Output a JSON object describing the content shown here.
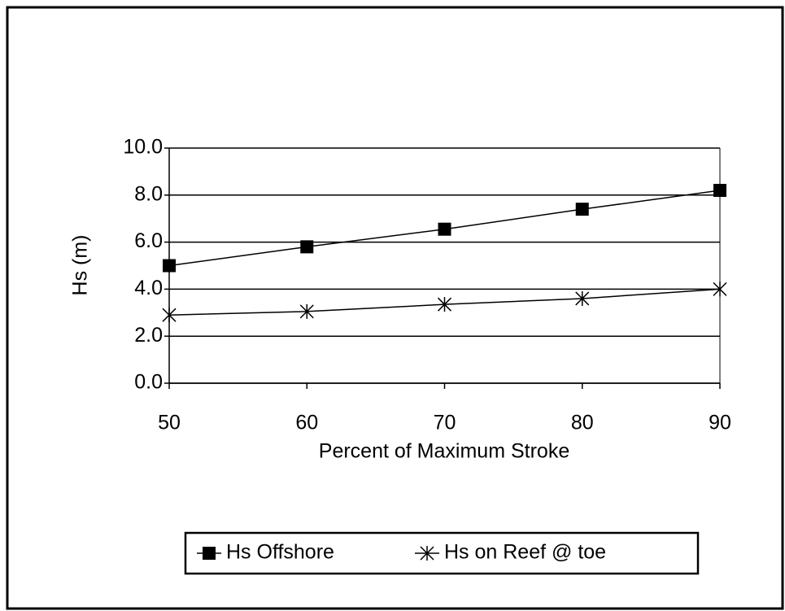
{
  "chart_data": {
    "type": "line",
    "x_label": "Percent of Maximum Stroke",
    "y_label": "Hs (m)",
    "x": [
      50,
      60,
      70,
      80,
      90
    ],
    "series": [
      {
        "name": "Hs Offshore",
        "color": "#000000",
        "marker": "square",
        "values": [
          5.0,
          5.8,
          6.55,
          7.4,
          8.2
        ]
      },
      {
        "name": "Hs on Reef @ toe",
        "color": "#000000",
        "marker": "star",
        "values": [
          2.9,
          3.05,
          3.35,
          3.6,
          4.0
        ]
      }
    ],
    "xlim": [
      50,
      90
    ],
    "xticks": [
      50,
      60,
      70,
      80,
      90
    ],
    "ylim": [
      0,
      10
    ],
    "yticks": [
      {
        "value": 0,
        "label": "0.0"
      },
      {
        "value": 2,
        "label": "2.0"
      },
      {
        "value": 4,
        "label": "4.0"
      },
      {
        "value": 6,
        "label": "6.0"
      },
      {
        "value": 8,
        "label": "8.0"
      },
      {
        "value": 10,
        "label": "10.0"
      }
    ],
    "grid": true,
    "legend": "bottom"
  }
}
